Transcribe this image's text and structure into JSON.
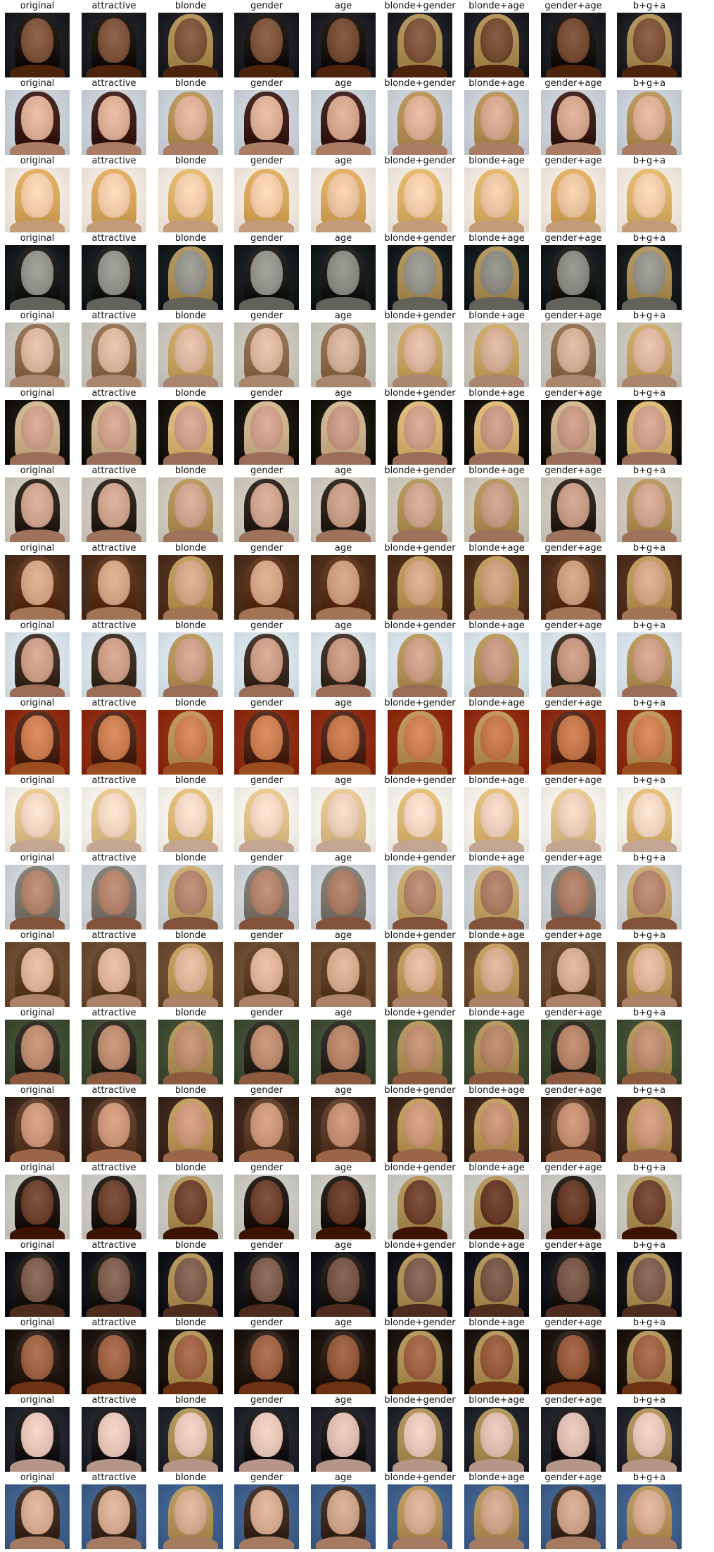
{
  "figure": {
    "columns": [
      "original",
      "attractive",
      "blonde",
      "gender",
      "age",
      "blonde+gender",
      "blonde+age",
      "gender+age",
      "b+g+a"
    ],
    "rows": [
      {
        "bg": "#1b1d22",
        "hair": "#1a1410",
        "skin": "#7a5138"
      },
      {
        "bg": "#c8cfd6",
        "hair": "#3a1d18",
        "skin": "#d8aa92"
      },
      {
        "bg": "#efe7dd",
        "hair": "#d7a65b",
        "skin": "#efc8a6"
      },
      {
        "bg": "#151a1c",
        "hair": "#1c1a18",
        "skin": "#8f8f88"
      },
      {
        "bg": "#c7c4bb",
        "hair": "#8a6a4a",
        "skin": "#d8b29a"
      },
      {
        "bg": "#17130f",
        "hair": "#c9b08a",
        "skin": "#c99b86"
      },
      {
        "bg": "#ccc6bb",
        "hair": "#2b211b",
        "skin": "#caa08a"
      },
      {
        "bg": "#4b2e1c",
        "hair": "#5a3019",
        "skin": "#d0a083"
      },
      {
        "bg": "#d7e1e8",
        "hair": "#3b2c22",
        "skin": "#c89983"
      },
      {
        "bg": "#8a2b12",
        "hair": "#4a2416",
        "skin": "#c77a4e"
      },
      {
        "bg": "#f3efe9",
        "hair": "#e0c08a",
        "skin": "#efd3c0"
      },
      {
        "bg": "#cdd2d6",
        "hair": "#7c756d",
        "skin": "#b07f68"
      },
      {
        "bg": "#6b4a32",
        "hair": "#5c3d23",
        "skin": "#d9b094"
      },
      {
        "bg": "#3f4a32",
        "hair": "#2a241e",
        "skin": "#b8876c"
      },
      {
        "bg": "#3a261a",
        "hair": "#5b3a27",
        "skin": "#c79276"
      },
      {
        "bg": "#c8c7bf",
        "hair": "#1e1714",
        "skin": "#6a3f2b"
      },
      {
        "bg": "#111318",
        "hair": "#1f1916",
        "skin": "#7b5a4c"
      },
      {
        "bg": "#1c140f",
        "hair": "#2a1d15",
        "skin": "#9a5f40"
      },
      {
        "bg": "#20232a",
        "hair": "#1a1718",
        "skin": "#e2c2b4"
      },
      {
        "bg": "#3f5f8a",
        "hair": "#3a2a20",
        "skin": "#d1a88d"
      }
    ]
  }
}
